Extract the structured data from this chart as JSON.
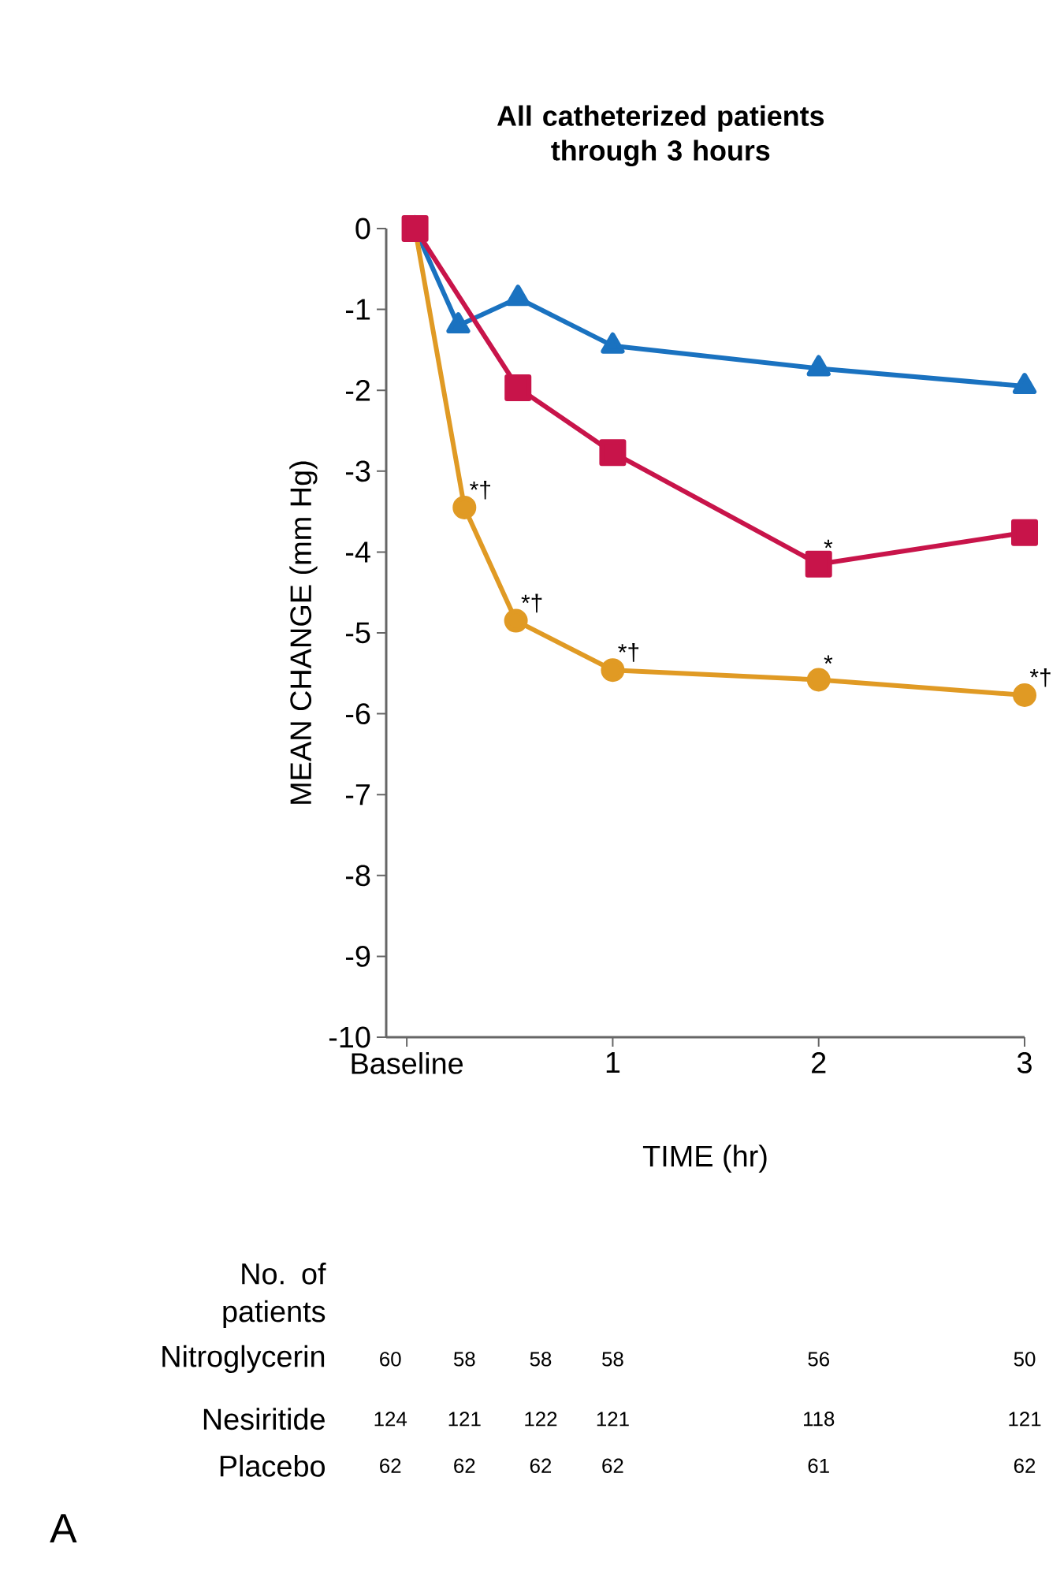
{
  "chart_data": {
    "type": "line",
    "title": "All catheterized patients through 3 hours",
    "xlabel": "TIME (hr)",
    "ylabel": "MEAN CHANGE (mm Hg)",
    "xlim": [
      -0.1,
      3
    ],
    "ylim": [
      -10,
      0
    ],
    "xticks": [
      {
        "value": 0,
        "label": "Baseline"
      },
      1,
      2,
      3
    ],
    "yticks": [
      -10,
      -9,
      -8,
      -7,
      -6,
      -5,
      -4,
      -3,
      -2,
      -1,
      0
    ],
    "line_style": "solid",
    "series": [
      {
        "color": "#1a72c0",
        "marker": "triangle",
        "x": [
          0.04,
          0.25,
          0.54,
          1,
          2,
          3
        ],
        "values": [
          0,
          -1.2,
          -0.86,
          -1.45,
          -1.73,
          -1.95
        ]
      },
      {
        "color": "#e09a24",
        "marker": "circle",
        "x": [
          0.04,
          0.28,
          0.53,
          1,
          2,
          3
        ],
        "values": [
          0,
          -3.45,
          -4.85,
          -5.46,
          -5.58,
          -5.77
        ]
      },
      {
        "color": "#c8144a",
        "marker": "square",
        "x": [
          0.04,
          0.54,
          1,
          2,
          3
        ],
        "values": [
          0,
          -1.97,
          -2.77,
          -4.15,
          -3.76
        ]
      }
    ],
    "annotations": [
      "No. of patients",
      "Nitroglycerin",
      "60",
      "58",
      "58",
      "58",
      "56",
      "50",
      "Nesiritide",
      "124",
      "121",
      "122",
      "121",
      "118",
      "121",
      "Placebo",
      "62",
      "62",
      "62",
      "62",
      "61",
      "62",
      "A",
      {
        "text": "*†",
        "x": 0.28,
        "y": -3.45
      },
      {
        "text": "*†",
        "x": 0.53,
        "y": -4.85
      },
      {
        "text": "*†",
        "x": 1,
        "y": -5.46
      },
      {
        "text": "*",
        "x": 2,
        "y": -5.58
      },
      {
        "text": "*†",
        "x": 3,
        "y": -5.77
      },
      {
        "text": "*",
        "x": 2,
        "y": -4.15
      }
    ]
  }
}
